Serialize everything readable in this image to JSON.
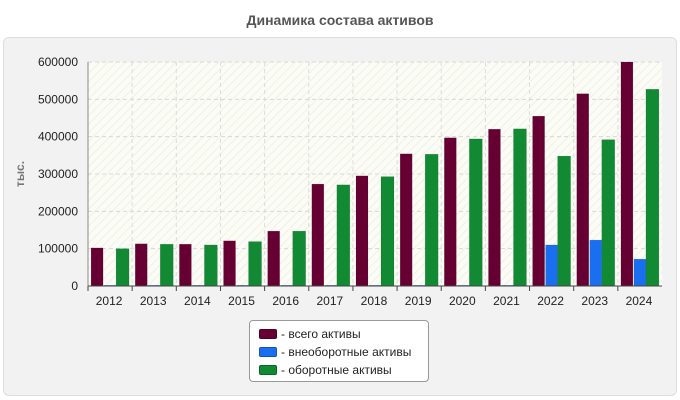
{
  "chart_data": {
    "type": "bar",
    "title": "Динамика состава активов",
    "ylabel": "тыс.",
    "xlabel": "",
    "ylim": [
      0,
      600000
    ],
    "yticks": [
      "0",
      "100000",
      "200000",
      "300000",
      "400000",
      "500000",
      "600000"
    ],
    "categories": [
      "2012",
      "2013",
      "2014",
      "2015",
      "2016",
      "2017",
      "2018",
      "2019",
      "2020",
      "2021",
      "2022",
      "2023",
      "2024"
    ],
    "grid": true,
    "legend_position": "bottom",
    "series": [
      {
        "name": "- всего активы",
        "color": "#660033",
        "values": [
          102000,
          113000,
          112000,
          121000,
          147000,
          273000,
          295000,
          354000,
          397000,
          420000,
          455000,
          515000,
          600000
        ]
      },
      {
        "name": "- внеоборотные активы",
        "color": "#1a6ef0",
        "values": [
          2000,
          2000,
          2000,
          2000,
          2000,
          2000,
          2000,
          2000,
          2000,
          2000,
          110000,
          123000,
          72000
        ]
      },
      {
        "name": "- оборотные активы",
        "color": "#118a33",
        "values": [
          100000,
          112000,
          110000,
          119000,
          147000,
          271000,
          293000,
          353000,
          394000,
          421000,
          348000,
          392000,
          527000
        ]
      }
    ]
  }
}
